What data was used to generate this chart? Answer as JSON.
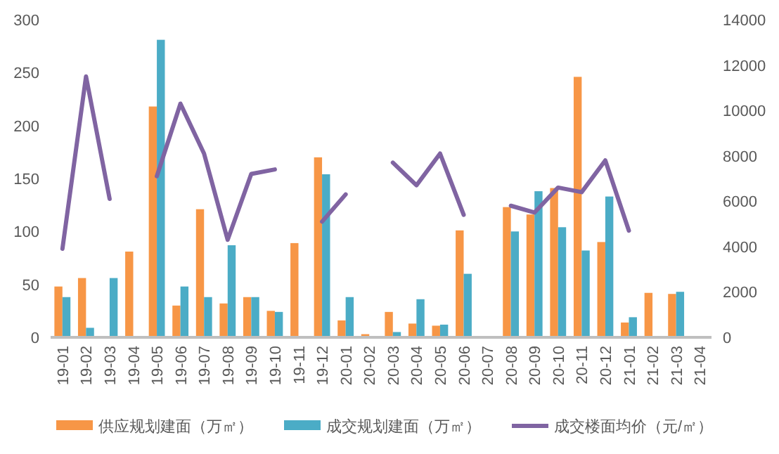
{
  "chart_data": {
    "type": "bar",
    "categories": [
      "19-01",
      "19-02",
      "19-03",
      "19-04",
      "19-05",
      "19-06",
      "19-07",
      "19-08",
      "19-09",
      "19-10",
      "19-11",
      "19-12",
      "20-01",
      "20-02",
      "20-03",
      "20-04",
      "20-05",
      "20-06",
      "20-07",
      "20-08",
      "20-09",
      "20-10",
      "20-11",
      "20-12",
      "21-01",
      "21-02",
      "21-03",
      "21-04"
    ],
    "series": [
      {
        "name": "供应规划建面（万㎡）",
        "color": "#f79646",
        "values": [
          48,
          56,
          null,
          81,
          218,
          30,
          121,
          32,
          38,
          25,
          89,
          170,
          16,
          3,
          24,
          13,
          11,
          101,
          null,
          123,
          116,
          141,
          246,
          90,
          14,
          42,
          41,
          null
        ]
      },
      {
        "name": "成交规划建面（万㎡）",
        "color": "#4bacc6",
        "values": [
          38,
          9,
          56,
          null,
          281,
          48,
          38,
          87,
          38,
          24,
          null,
          154,
          38,
          null,
          5,
          36,
          12,
          60,
          null,
          100,
          138,
          104,
          82,
          133,
          19,
          null,
          43,
          null
        ]
      },
      {
        "name": "成交楼面均价（元/㎡）",
        "type": "line",
        "axis": "y2",
        "color": "#8064a2",
        "values": [
          3900,
          11500,
          6100,
          null,
          7100,
          10300,
          8100,
          4300,
          7200,
          7400,
          null,
          5100,
          6300,
          null,
          7700,
          6700,
          8100,
          5400,
          null,
          5800,
          5500,
          6600,
          6400,
          7800,
          4700,
          null,
          null,
          null
        ]
      }
    ],
    "ylim": [
      0,
      300
    ],
    "yticks": [
      0,
      50,
      100,
      150,
      200,
      250,
      300
    ],
    "y2lim": [
      0,
      14000
    ],
    "y2ticks": [
      0,
      2000,
      4000,
      6000,
      8000,
      10000,
      12000,
      14000
    ],
    "grid": false,
    "legend": "bottom"
  }
}
